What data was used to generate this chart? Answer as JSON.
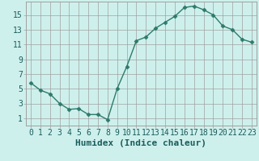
{
  "x": [
    0,
    1,
    2,
    3,
    4,
    5,
    6,
    7,
    8,
    9,
    10,
    11,
    12,
    13,
    14,
    15,
    16,
    17,
    18,
    19,
    20,
    21,
    22,
    23
  ],
  "y": [
    5.8,
    4.8,
    4.3,
    3.0,
    2.2,
    2.3,
    1.5,
    1.5,
    0.8,
    5.0,
    8.0,
    11.5,
    12.0,
    13.2,
    14.0,
    14.8,
    16.0,
    16.2,
    15.7,
    15.0,
    13.5,
    13.0,
    11.7,
    11.3
  ],
  "line_color": "#2d7a6b",
  "marker": "D",
  "marker_size": 2.5,
  "bg_color": "#cef0ec",
  "grid_color": "#a0a0a0",
  "xlabel": "Humidex (Indice chaleur)",
  "xlim": [
    -0.5,
    23.5
  ],
  "ylim": [
    0,
    16.8
  ],
  "yticks": [
    1,
    3,
    5,
    7,
    9,
    11,
    13,
    15
  ],
  "xticks": [
    0,
    1,
    2,
    3,
    4,
    5,
    6,
    7,
    8,
    9,
    10,
    11,
    12,
    13,
    14,
    15,
    16,
    17,
    18,
    19,
    20,
    21,
    22,
    23
  ],
  "xlabel_fontsize": 8,
  "tick_fontsize": 7,
  "label_color": "#1a5c5c",
  "line_width": 1.0
}
